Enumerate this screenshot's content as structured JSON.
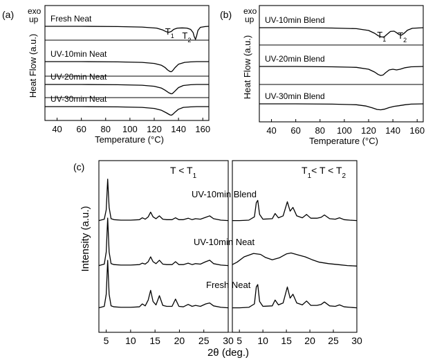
{
  "chart_data": [
    {
      "panel": "(a)",
      "type": "line",
      "corner_label": [
        "exo",
        "up"
      ],
      "xlabel": "Temperature (°C)",
      "ylabel": "Heat Flow (a.u.)",
      "xlim": [
        30,
        165
      ],
      "xticks": [
        40,
        60,
        80,
        100,
        120,
        140,
        160
      ],
      "series": [
        {
          "name": "Fresh Neat",
          "x": [
            30,
            60,
            90,
            110,
            122,
            127,
            130,
            132,
            134,
            136,
            139,
            143,
            147,
            150,
            152,
            153,
            154,
            155,
            156,
            158,
            162,
            165
          ],
          "y": [
            0,
            0,
            -0.05,
            -0.15,
            -0.35,
            -0.7,
            -1.05,
            -1.15,
            -1.0,
            -0.6,
            -0.35,
            -0.3,
            -0.35,
            -0.6,
            -1.2,
            -2.0,
            -2.5,
            -1.8,
            -0.8,
            -0.2,
            -0.05,
            0
          ]
        },
        {
          "name": "UV-10min Neat",
          "x": [
            30,
            60,
            90,
            110,
            120,
            126,
            129,
            131,
            133,
            134,
            135,
            137,
            140,
            145,
            150,
            155,
            165
          ],
          "y": [
            0,
            0,
            -0.05,
            -0.15,
            -0.35,
            -0.7,
            -1.15,
            -1.6,
            -1.9,
            -1.95,
            -1.8,
            -1.2,
            -0.5,
            -0.15,
            -0.05,
            0,
            0
          ]
        },
        {
          "name": "UV-20min Neat",
          "x": [
            30,
            60,
            90,
            110,
            120,
            126,
            129,
            132,
            134,
            135,
            137,
            140,
            144,
            150,
            155,
            165
          ],
          "y": [
            0,
            0,
            -0.05,
            -0.15,
            -0.35,
            -0.7,
            -1.1,
            -1.6,
            -1.8,
            -1.75,
            -1.3,
            -0.6,
            -0.2,
            -0.05,
            0,
            0
          ]
        },
        {
          "name": "UV-30min Neat",
          "x": [
            30,
            60,
            90,
            110,
            120,
            126,
            130,
            133,
            134,
            135,
            137,
            140,
            144,
            150,
            155,
            165
          ],
          "y": [
            0,
            0,
            -0.05,
            -0.15,
            -0.35,
            -0.7,
            -1.2,
            -1.6,
            -1.65,
            -1.55,
            -1.1,
            -0.5,
            -0.15,
            -0.05,
            0,
            0
          ]
        }
      ],
      "annotations": [
        {
          "text": "T",
          "sub": "1",
          "series": "Fresh Neat",
          "x": 129
        },
        {
          "text": "T",
          "sub": "2",
          "series": "Fresh Neat",
          "x": 143
        }
      ]
    },
    {
      "panel": "(b)",
      "type": "line",
      "corner_label": [
        "exo",
        "up"
      ],
      "xlabel": "Temperature (°C)",
      "ylabel": "Heat Flow (a.u.)",
      "xlim": [
        30,
        165
      ],
      "xticks": [
        40,
        60,
        80,
        100,
        120,
        140,
        160
      ],
      "series": [
        {
          "name": "UV-10min Blend",
          "x": [
            30,
            60,
            90,
            110,
            120,
            125,
            128,
            131,
            133,
            135,
            138,
            141,
            143,
            145,
            147,
            149,
            152,
            156,
            165
          ],
          "y": [
            0,
            0,
            -0.05,
            -0.15,
            -0.45,
            -0.9,
            -1.3,
            -1.5,
            -1.45,
            -1.1,
            -0.6,
            -0.55,
            -0.8,
            -1.1,
            -1.2,
            -0.95,
            -0.4,
            -0.1,
            0
          ]
        },
        {
          "name": "UV-20min Blend",
          "x": [
            30,
            60,
            90,
            110,
            120,
            125,
            128,
            130,
            132,
            134,
            137,
            140,
            143,
            146,
            150,
            155,
            165
          ],
          "y": [
            0,
            0,
            -0.05,
            -0.15,
            -0.45,
            -0.9,
            -1.3,
            -1.45,
            -1.35,
            -1.0,
            -0.55,
            -0.45,
            -0.55,
            -0.45,
            -0.2,
            -0.05,
            0
          ]
        },
        {
          "name": "UV-30min Blend",
          "x": [
            30,
            60,
            90,
            110,
            118,
            123,
            127,
            130,
            133,
            137,
            141,
            145,
            150,
            155,
            165
          ],
          "y": [
            0,
            0,
            -0.05,
            -0.15,
            -0.35,
            -0.65,
            -0.9,
            -0.95,
            -0.85,
            -0.6,
            -0.4,
            -0.3,
            -0.15,
            -0.05,
            0
          ]
        }
      ],
      "annotations": [
        {
          "text": "T",
          "sub": "1",
          "series": "UV-10min Blend",
          "x": 127
        },
        {
          "text": "T",
          "sub": "2",
          "series": "UV-10min Blend",
          "x": 144
        }
      ]
    },
    {
      "panel": "(c)",
      "type": "line",
      "xlabel": "2θ (deg.)",
      "ylabel": "Intensity (a.u.)",
      "xticks": [
        5,
        10,
        15,
        20,
        25,
        30
      ],
      "subpanels": [
        {
          "title": "T < T1",
          "xlim": [
            3.5,
            30
          ],
          "series": [
            {
              "name": "UV-10min Blend",
              "x": [
                3.5,
                4.6,
                5.0,
                5.3,
                5.6,
                6.0,
                6.6,
                8,
                10,
                11.8,
                12.4,
                13.0,
                13.6,
                14.1,
                14.6,
                15.2,
                15.9,
                16.6,
                17.4,
                18.5,
                19.2,
                19.9,
                20.8,
                21.8,
                22.6,
                23.3,
                24.3,
                25.4,
                26.2,
                27.0,
                28.5,
                30
              ],
              "y": [
                0.02,
                0.05,
                0.25,
                0.9,
                0.3,
                0.06,
                0.04,
                0.03,
                0.03,
                0.04,
                0.08,
                0.05,
                0.1,
                0.2,
                0.1,
                0.06,
                0.12,
                0.05,
                0.04,
                0.04,
                0.08,
                0.04,
                0.04,
                0.07,
                0.04,
                0.06,
                0.05,
                0.09,
                0.12,
                0.06,
                0.03,
                0.02
              ]
            },
            {
              "name": "UV-10min Neat",
              "x": [
                3.5,
                4.6,
                5.0,
                5.3,
                5.6,
                6.0,
                6.6,
                8,
                10,
                11.8,
                12.4,
                13.0,
                13.6,
                14.1,
                14.6,
                15.2,
                15.9,
                16.6,
                17.4,
                18.5,
                19.2,
                19.9,
                20.8,
                21.8,
                22.6,
                23.3,
                24.3,
                25.4,
                26.2,
                27.0,
                28.5,
                30
              ],
              "y": [
                0.02,
                0.05,
                0.3,
                1.0,
                0.3,
                0.06,
                0.04,
                0.03,
                0.03,
                0.04,
                0.07,
                0.05,
                0.1,
                0.2,
                0.1,
                0.06,
                0.13,
                0.05,
                0.04,
                0.04,
                0.1,
                0.04,
                0.04,
                0.07,
                0.04,
                0.06,
                0.05,
                0.1,
                0.13,
                0.06,
                0.03,
                0.02
              ]
            },
            {
              "name": "Fresh Neat",
              "x": [
                3.5,
                4.6,
                5.0,
                5.3,
                5.6,
                6.0,
                6.6,
                8,
                10,
                11.8,
                12.4,
                13.0,
                13.6,
                14.1,
                14.6,
                15.2,
                15.9,
                16.6,
                17.4,
                18.5,
                19.2,
                19.9,
                20.8,
                21.8,
                22.6,
                23.3,
                24.3,
                25.4,
                26.2,
                27.0,
                28.5,
                30
              ],
              "y": [
                0.02,
                0.05,
                0.3,
                1.0,
                0.3,
                0.06,
                0.04,
                0.03,
                0.03,
                0.04,
                0.1,
                0.06,
                0.18,
                0.38,
                0.15,
                0.08,
                0.27,
                0.07,
                0.05,
                0.05,
                0.2,
                0.05,
                0.04,
                0.09,
                0.05,
                0.07,
                0.05,
                0.1,
                0.12,
                0.06,
                0.03,
                0.02
              ]
            }
          ]
        },
        {
          "title": "T1 < T < T2",
          "xlim": [
            3.5,
            30
          ],
          "series": [
            {
              "name": "UV-10min Blend",
              "x": [
                3.5,
                5,
                7,
                8.2,
                8.6,
                8.9,
                9.3,
                10,
                12,
                12.6,
                13.3,
                14.3,
                15.2,
                15.8,
                16.4,
                17.2,
                18.4,
                19.3,
                20.2,
                21.5,
                22.4,
                23.1,
                24.2,
                25.4,
                26.3,
                27.3,
                28.5,
                30
              ],
              "y": [
                0.02,
                0.02,
                0.03,
                0.1,
                0.4,
                0.45,
                0.15,
                0.05,
                0.06,
                0.17,
                0.08,
                0.12,
                0.42,
                0.22,
                0.3,
                0.12,
                0.08,
                0.15,
                0.07,
                0.07,
                0.09,
                0.14,
                0.06,
                0.05,
                0.08,
                0.04,
                0.03,
                0.02
              ]
            },
            {
              "name": "UV-10min Neat",
              "x": [
                3.5,
                4.5,
                6,
                8,
                9.5,
                10.5,
                12,
                13.5,
                15,
                16,
                17.5,
                19,
                20.5,
                22,
                24,
                26,
                28,
                30
              ],
              "y": [
                0.04,
                0.09,
                0.2,
                0.27,
                0.25,
                0.19,
                0.14,
                0.18,
                0.26,
                0.28,
                0.24,
                0.2,
                0.14,
                0.09,
                0.06,
                0.04,
                0.02,
                0.01
              ]
            },
            {
              "name": "Fresh Neat",
              "x": [
                3.5,
                5,
                7,
                8.2,
                8.6,
                8.9,
                9.3,
                10,
                12,
                12.6,
                13.3,
                14.3,
                15.2,
                15.8,
                16.4,
                17.2,
                18.4,
                19.3,
                20.2,
                21.5,
                22.4,
                23.1,
                24.2,
                25.4,
                26.3,
                27.3,
                28.5,
                30
              ],
              "y": [
                0.02,
                0.02,
                0.03,
                0.1,
                0.45,
                0.5,
                0.15,
                0.05,
                0.06,
                0.18,
                0.08,
                0.12,
                0.45,
                0.22,
                0.3,
                0.12,
                0.08,
                0.16,
                0.07,
                0.07,
                0.09,
                0.14,
                0.06,
                0.05,
                0.08,
                0.04,
                0.03,
                0.02
              ]
            }
          ]
        }
      ]
    }
  ]
}
